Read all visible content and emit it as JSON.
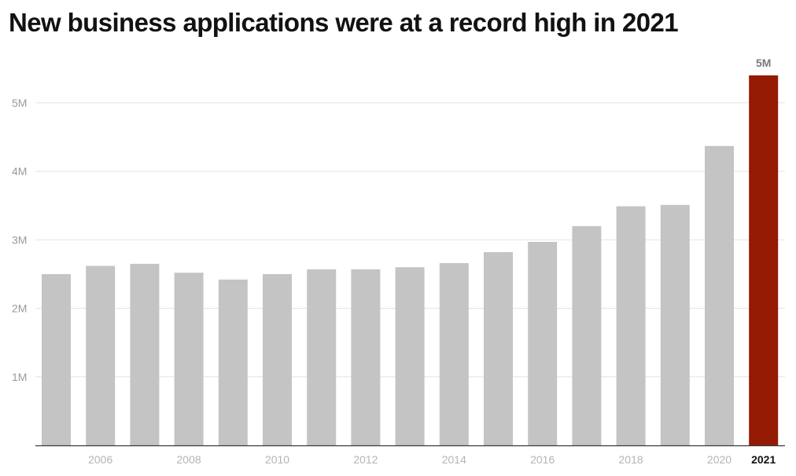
{
  "chart_data": {
    "type": "bar",
    "title": "New business applications were at a record high in 2021",
    "xlabel": "",
    "ylabel": "",
    "categories": [
      "2005",
      "2006",
      "2007",
      "2008",
      "2009",
      "2010",
      "2011",
      "2012",
      "2013",
      "2014",
      "2015",
      "2016",
      "2017",
      "2018",
      "2019",
      "2020",
      "2021"
    ],
    "x_tick_labels": [
      "",
      "2006",
      "",
      "2008",
      "",
      "2010",
      "",
      "2012",
      "",
      "2014",
      "",
      "2016",
      "",
      "2018",
      "",
      "2020",
      "2021"
    ],
    "values": [
      2500000,
      2620000,
      2650000,
      2520000,
      2420000,
      2500000,
      2570000,
      2570000,
      2600000,
      2660000,
      2820000,
      2970000,
      3200000,
      3490000,
      3510000,
      4370000,
      5400000
    ],
    "ylim": [
      0,
      5400000
    ],
    "y_ticks": [
      {
        "value": 1000000,
        "label": "1M"
      },
      {
        "value": 2000000,
        "label": "2M"
      },
      {
        "value": 3000000,
        "label": "3M"
      },
      {
        "value": 4000000,
        "label": "4M"
      },
      {
        "value": 5000000,
        "label": "5M"
      }
    ],
    "grid": true,
    "highlight_category": "2021",
    "highlight_label": "5M",
    "colors": {
      "bar": "#c4c4c4",
      "highlight": "#951a04",
      "grid": "#e4e4e4",
      "axis": "#3a3a3a"
    }
  }
}
